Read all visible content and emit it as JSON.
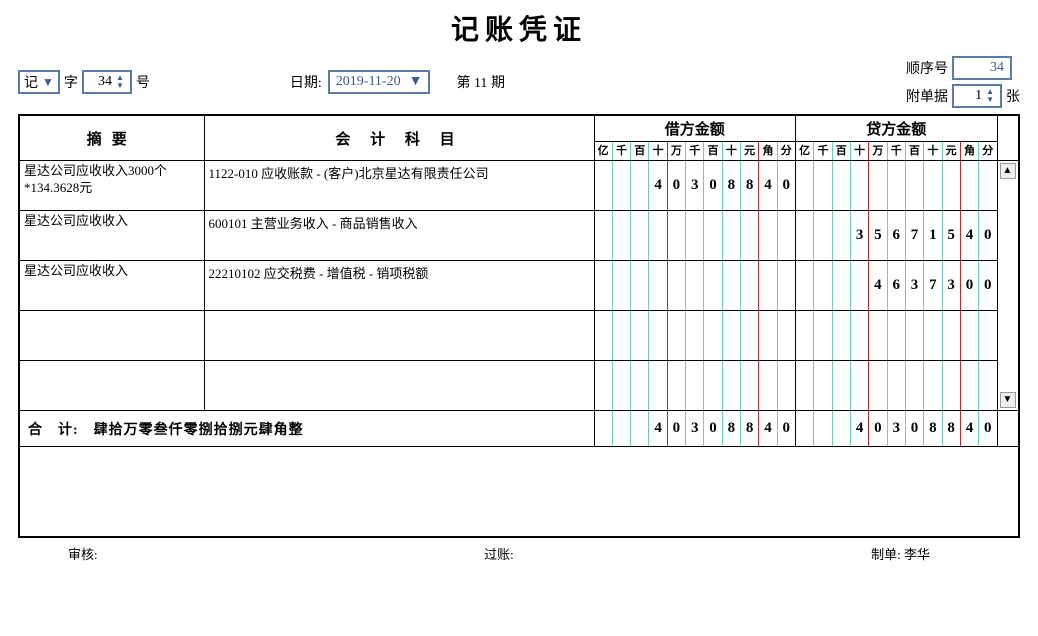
{
  "title": "记账凭证",
  "header": {
    "type_prefix": "记",
    "type_suffix_zi": "字",
    "voucher_no": "34",
    "voucher_no_suffix": "号",
    "date_label": "日期:",
    "date_value": "2019-11-20",
    "period_prefix": "第",
    "period_no": "11",
    "period_suffix": "期",
    "seq_label": "顺序号",
    "seq_value": "34",
    "attach_label": "附单据",
    "attach_value": "1",
    "attach_suffix": "张"
  },
  "columns": {
    "summary": "摘要",
    "subject": "会 计 科 目",
    "debit": "借方金额",
    "credit": "贷方金额",
    "digit_units": [
      "亿",
      "千",
      "百",
      "十",
      "万",
      "千",
      "百",
      "十",
      "元",
      "角",
      "分"
    ]
  },
  "rows": [
    {
      "summary": "星达公司应收收入3000个*134.3628元",
      "subject": "1122-010 应收账款 - (客户)北京星达有限责任公司",
      "debit": [
        "",
        "",
        "",
        "4",
        "0",
        "3",
        "0",
        "8",
        "8",
        "4",
        "0"
      ],
      "credit": [
        "",
        "",
        "",
        "",
        "",
        "",
        "",
        "",
        "",
        "",
        ""
      ]
    },
    {
      "summary": "星达公司应收收入",
      "subject": "600101 主营业务收入 - 商品销售收入",
      "debit": [
        "",
        "",
        "",
        "",
        "",
        "",
        "",
        "",
        "",
        "",
        ""
      ],
      "credit": [
        "",
        "",
        "",
        "3",
        "5",
        "6",
        "7",
        "1",
        "5",
        "4",
        "0"
      ]
    },
    {
      "summary": "星达公司应收收入",
      "subject": "22210102 应交税费 - 增值税 - 销项税额",
      "debit": [
        "",
        "",
        "",
        "",
        "",
        "",
        "",
        "",
        "",
        "",
        ""
      ],
      "credit": [
        "",
        "",
        "",
        "",
        "4",
        "6",
        "3",
        "7",
        "3",
        "0",
        "0"
      ]
    },
    {
      "summary": "",
      "subject": "",
      "debit": [
        "",
        "",
        "",
        "",
        "",
        "",
        "",
        "",
        "",
        "",
        ""
      ],
      "credit": [
        "",
        "",
        "",
        "",
        "",
        "",
        "",
        "",
        "",
        "",
        ""
      ]
    },
    {
      "summary": "",
      "subject": "",
      "debit": [
        "",
        "",
        "",
        "",
        "",
        "",
        "",
        "",
        "",
        "",
        ""
      ],
      "credit": [
        "",
        "",
        "",
        "",
        "",
        "",
        "",
        "",
        "",
        "",
        ""
      ]
    }
  ],
  "total": {
    "label": "合　计:　肆拾万零叁仟零捌拾捌元肆角整",
    "debit": [
      "",
      "",
      "",
      "4",
      "0",
      "3",
      "0",
      "8",
      "8",
      "4",
      "0"
    ],
    "credit": [
      "",
      "",
      "",
      "4",
      "0",
      "3",
      "0",
      "8",
      "8",
      "4",
      "0"
    ]
  },
  "footer": {
    "auditor_label": "审核:",
    "poster_label": "过账:",
    "preparer_label": "制单:",
    "preparer_name": "李华"
  },
  "style": {
    "grid_color": "#6fcfb6",
    "grid_accent": "#c62828",
    "border_color": "#000000",
    "input_border": "#5a7aa8",
    "red_indices": [
      3,
      8
    ]
  }
}
